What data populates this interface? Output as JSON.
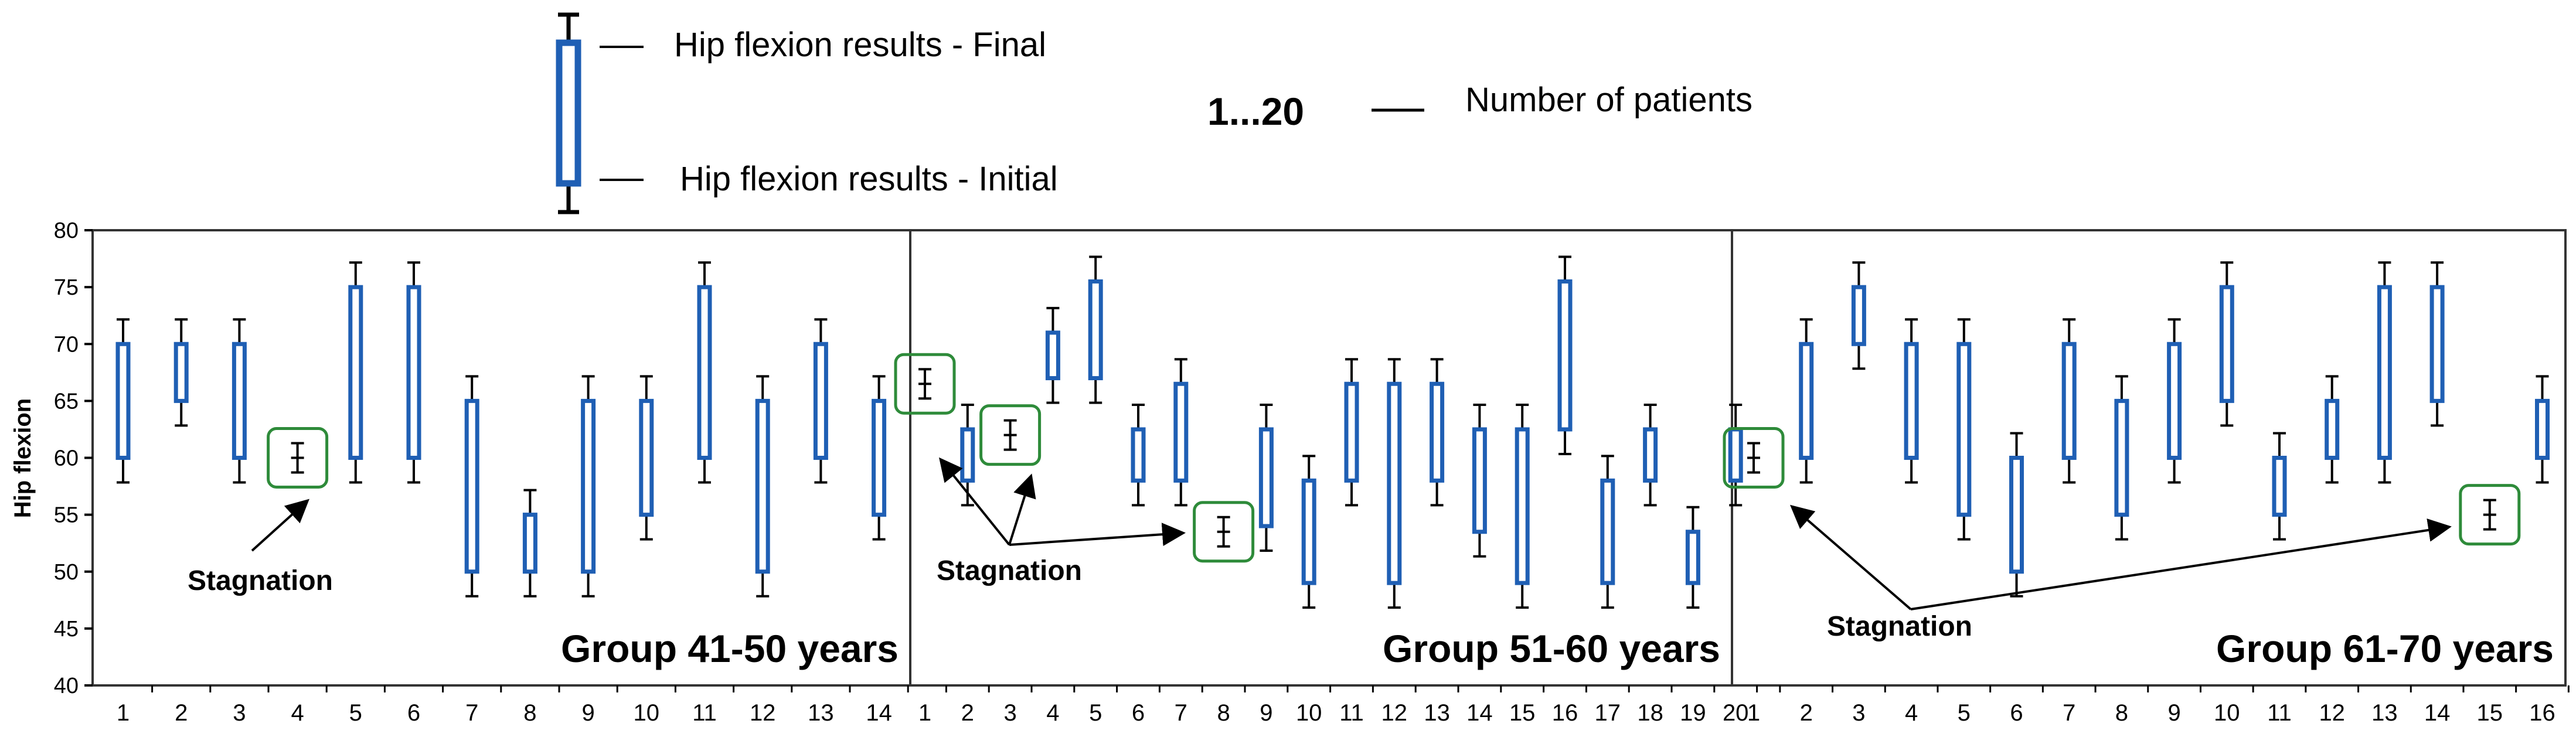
{
  "colors": {
    "bar_outline": "#1f5fb4",
    "axis": "#000000",
    "stagnation_box": "#2e8b3a",
    "text": "#000000"
  },
  "legend": {
    "final_label": "Hip flexion results - Final",
    "initial_label": "Hip flexion results - Initial",
    "patients_range": "1...20",
    "patients_label": "Number of patients"
  },
  "chart_data": {
    "type": "range-bar",
    "ylabel": "Hip flexion",
    "ylim": [
      40,
      80
    ],
    "yticks": [
      40,
      45,
      50,
      55,
      60,
      65,
      70,
      75,
      80
    ],
    "grid": false,
    "annotation_label": "Stagnation",
    "groups": [
      {
        "name": "Group 41-50 years",
        "patients": [
          {
            "id": "1",
            "initial": 60,
            "final": 70
          },
          {
            "id": "2",
            "initial": 65,
            "final": 70
          },
          {
            "id": "3",
            "initial": 60,
            "final": 70
          },
          {
            "id": "4",
            "initial": 60,
            "final": 60,
            "stagnation": true
          },
          {
            "id": "5",
            "initial": 60,
            "final": 75
          },
          {
            "id": "6",
            "initial": 60,
            "final": 75
          },
          {
            "id": "7",
            "initial": 50,
            "final": 65
          },
          {
            "id": "8",
            "initial": 50,
            "final": 55
          },
          {
            "id": "9",
            "initial": 50,
            "final": 65
          },
          {
            "id": "10",
            "initial": 55,
            "final": 65
          },
          {
            "id": "11",
            "initial": 60,
            "final": 75
          },
          {
            "id": "12",
            "initial": 50,
            "final": 65
          },
          {
            "id": "13",
            "initial": 60,
            "final": 70
          },
          {
            "id": "14",
            "initial": 55,
            "final": 65
          }
        ]
      },
      {
        "name": "Group 51-60 years",
        "patients": [
          {
            "id": "1",
            "initial": 66.5,
            "final": 66.5,
            "stagnation": true
          },
          {
            "id": "2",
            "initial": 58,
            "final": 62.5
          },
          {
            "id": "3",
            "initial": 62,
            "final": 62,
            "stagnation": true
          },
          {
            "id": "4",
            "initial": 67,
            "final": 71
          },
          {
            "id": "5",
            "initial": 67,
            "final": 75.5
          },
          {
            "id": "6",
            "initial": 58,
            "final": 62.5
          },
          {
            "id": "7",
            "initial": 58,
            "final": 66.5
          },
          {
            "id": "8",
            "initial": 53.5,
            "final": 53.5,
            "stagnation": true
          },
          {
            "id": "9",
            "initial": 54,
            "final": 62.5
          },
          {
            "id": "10",
            "initial": 49,
            "final": 58
          },
          {
            "id": "11",
            "initial": 58,
            "final": 66.5
          },
          {
            "id": "12",
            "initial": 49,
            "final": 66.5
          },
          {
            "id": "13",
            "initial": 58,
            "final": 66.5
          },
          {
            "id": "14",
            "initial": 53.5,
            "final": 62.5
          },
          {
            "id": "15",
            "initial": 49,
            "final": 62.5
          },
          {
            "id": "16",
            "initial": 62.5,
            "final": 75.5
          },
          {
            "id": "17",
            "initial": 49,
            "final": 58
          },
          {
            "id": "18",
            "initial": 58,
            "final": 62.5
          },
          {
            "id": "19",
            "initial": 49,
            "final": 53.5
          },
          {
            "id": "20",
            "initial": 58,
            "final": 62.5
          }
        ]
      },
      {
        "name": "Group 61-70 years",
        "patients": [
          {
            "id": "1",
            "initial": 60,
            "final": 60,
            "stagnation": true
          },
          {
            "id": "2",
            "initial": 60,
            "final": 70
          },
          {
            "id": "3",
            "initial": 70,
            "final": 75
          },
          {
            "id": "4",
            "initial": 60,
            "final": 70
          },
          {
            "id": "5",
            "initial": 55,
            "final": 70
          },
          {
            "id": "6",
            "initial": 50,
            "final": 60
          },
          {
            "id": "7",
            "initial": 60,
            "final": 70
          },
          {
            "id": "8",
            "initial": 55,
            "final": 65
          },
          {
            "id": "9",
            "initial": 60,
            "final": 70
          },
          {
            "id": "10",
            "initial": 65,
            "final": 75
          },
          {
            "id": "11",
            "initial": 55,
            "final": 60
          },
          {
            "id": "12",
            "initial": 60,
            "final": 65
          },
          {
            "id": "13",
            "initial": 60,
            "final": 75
          },
          {
            "id": "14",
            "initial": 65,
            "final": 75
          },
          {
            "id": "15",
            "initial": 55,
            "final": 55,
            "stagnation": true
          },
          {
            "id": "16",
            "initial": 60,
            "final": 65
          }
        ]
      }
    ]
  }
}
